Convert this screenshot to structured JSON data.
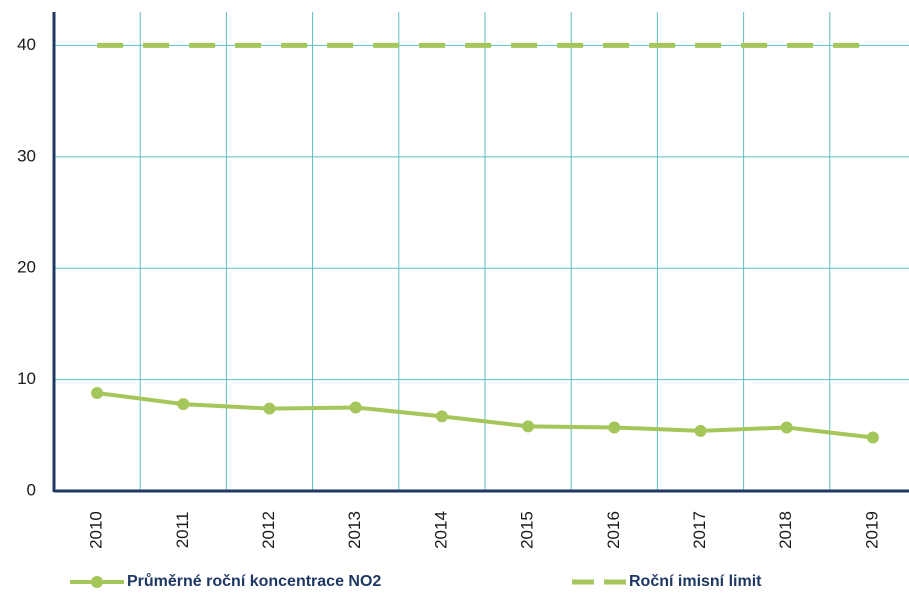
{
  "chart_data": {
    "type": "line",
    "categories": [
      "2010",
      "2011",
      "2012",
      "2013",
      "2014",
      "2015",
      "2016",
      "2017",
      "2018",
      "2019"
    ],
    "series": [
      {
        "name": "Průměrné roční koncentrace NO2",
        "color": "#a4c65a",
        "style": "solid",
        "markers": true,
        "values": [
          8.8,
          7.8,
          7.4,
          7.5,
          6.7,
          5.8,
          5.7,
          5.4,
          5.7,
          4.8
        ]
      },
      {
        "name": "Roční imisní limit",
        "color": "#a4c65a",
        "style": "dashed",
        "markers": false,
        "values": [
          40,
          40,
          40,
          40,
          40,
          40,
          40,
          40,
          40,
          40
        ]
      }
    ],
    "ylim": [
      0,
      43
    ],
    "yticks": [
      0,
      10,
      20,
      30,
      40
    ],
    "grid": true,
    "legend": "bottom"
  }
}
